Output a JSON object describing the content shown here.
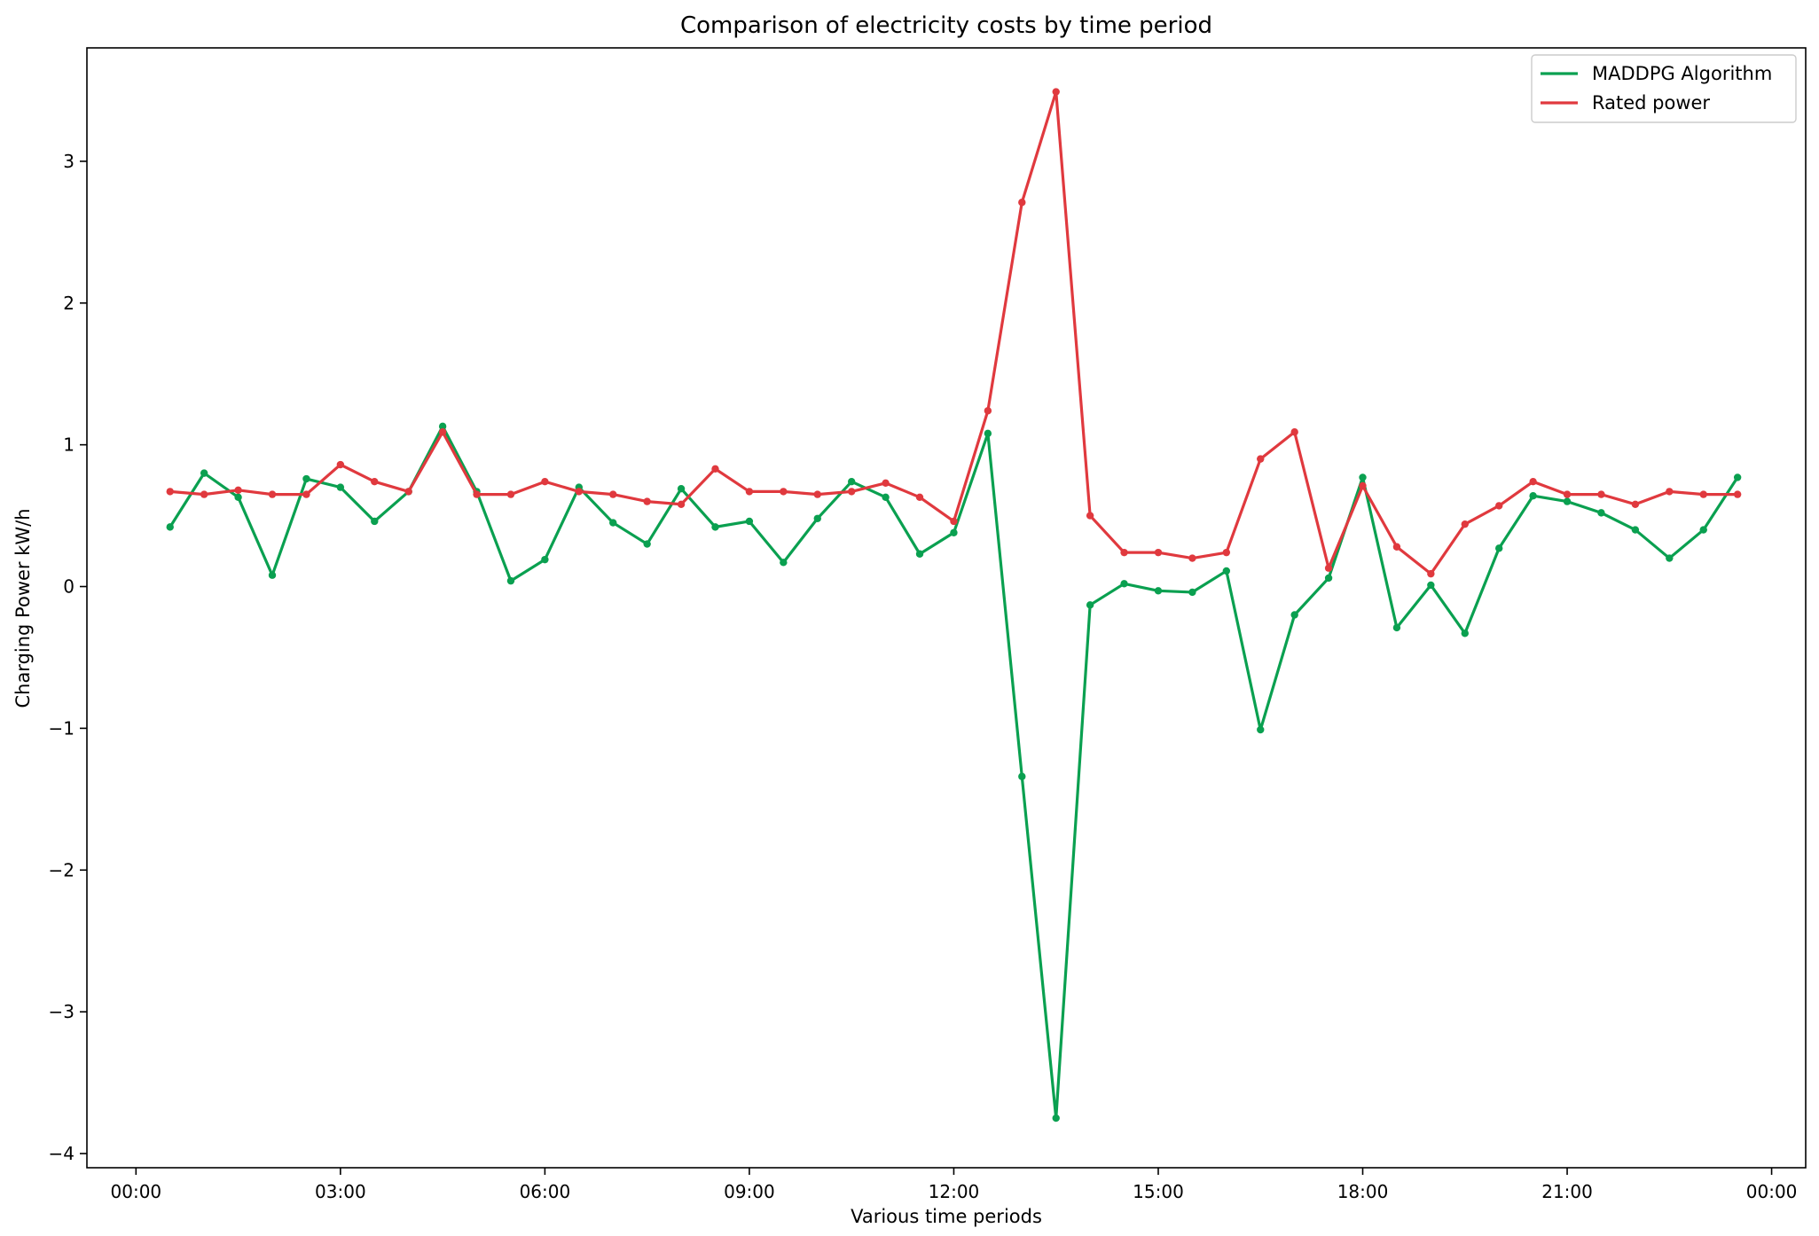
{
  "chart_data": {
    "type": "line",
    "title": "Comparison of electricity costs by time period",
    "xlabel": "Various time periods",
    "ylabel": "Charging Power kW/h",
    "x_ticks": [
      "00:00",
      "03:00",
      "06:00",
      "09:00",
      "12:00",
      "15:00",
      "18:00",
      "21:00",
      "00:00"
    ],
    "y_ticks": [
      3,
      2,
      1,
      0,
      -1,
      -2,
      -3,
      -4
    ],
    "xlim": [
      -0.72,
      24.5
    ],
    "ylim": [
      -4.1,
      3.8
    ],
    "grid": false,
    "legend_position": "top-right",
    "x": [
      0.5,
      1.0,
      1.5,
      2.0,
      2.5,
      3.0,
      3.5,
      4.0,
      4.5,
      5.0,
      5.5,
      6.0,
      6.5,
      7.0,
      7.5,
      8.0,
      8.5,
      9.0,
      9.5,
      10.0,
      10.5,
      11.0,
      11.5,
      12.0,
      12.5,
      13.0,
      13.5,
      14.0,
      14.5,
      15.0,
      15.5,
      16.0,
      16.5,
      17.0,
      17.5,
      18.0,
      18.5,
      19.0,
      19.5,
      20.0,
      20.5,
      21.0,
      21.5,
      22.0,
      22.5,
      23.0,
      23.5
    ],
    "series": [
      {
        "name": "MADDPG Algorithm",
        "color": "#0aa050",
        "values": [
          0.42,
          0.8,
          0.63,
          0.08,
          0.76,
          0.7,
          0.46,
          0.67,
          1.13,
          0.67,
          0.04,
          0.19,
          0.7,
          0.45,
          0.3,
          0.69,
          0.42,
          0.46,
          0.17,
          0.48,
          0.74,
          0.63,
          0.23,
          0.38,
          1.08,
          -1.34,
          -3.75,
          -0.13,
          0.02,
          -0.03,
          -0.04,
          0.11,
          -1.01,
          -0.2,
          0.06,
          0.77,
          -0.29,
          0.01,
          -0.33,
          0.27,
          0.64,
          0.6,
          0.52,
          0.4,
          0.2,
          0.4,
          0.77
        ]
      },
      {
        "name": "Rated power",
        "color": "#e0393e",
        "values": [
          0.67,
          0.65,
          0.68,
          0.65,
          0.65,
          0.86,
          0.74,
          0.67,
          1.09,
          0.65,
          0.65,
          0.74,
          0.67,
          0.65,
          0.6,
          0.58,
          0.83,
          0.67,
          0.67,
          0.65,
          0.67,
          0.73,
          0.63,
          0.46,
          1.24,
          2.71,
          3.49,
          0.5,
          0.24,
          0.24,
          0.2,
          0.24,
          0.9,
          1.09,
          0.13,
          0.71,
          0.28,
          0.09,
          0.44,
          0.57,
          0.74,
          0.65,
          0.65,
          0.58,
          0.67,
          0.65,
          0.65
        ]
      }
    ]
  }
}
